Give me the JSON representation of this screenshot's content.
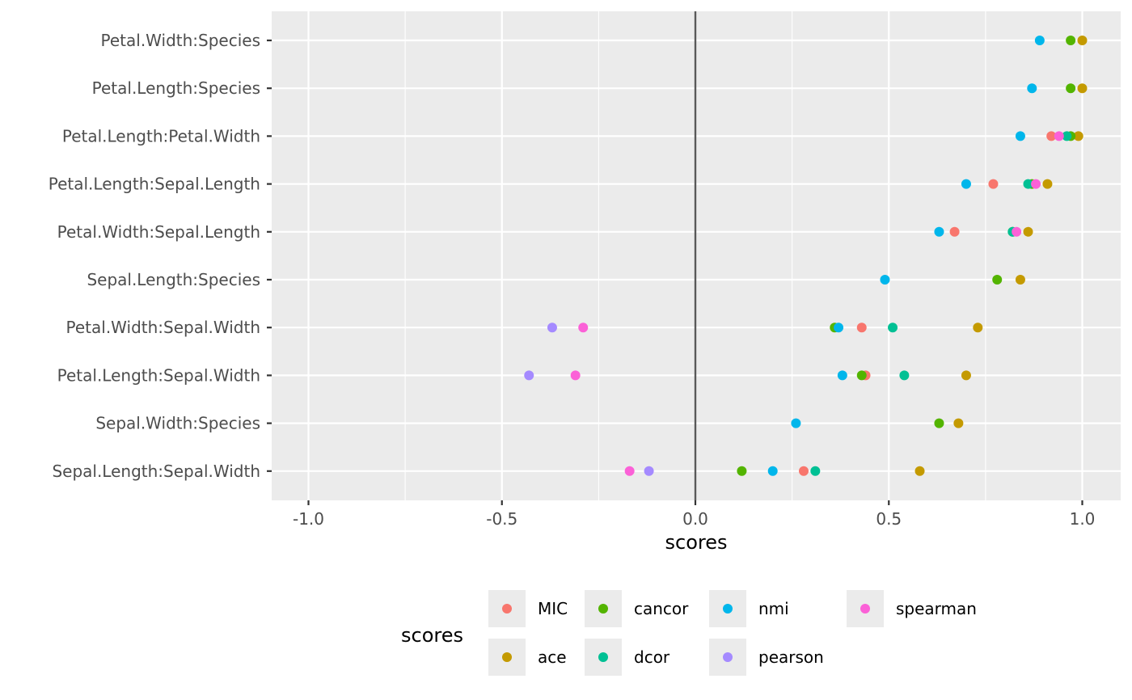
{
  "chart_data": {
    "type": "scatter",
    "xlabel": "scores",
    "xlim": [
      -1.1,
      1.1
    ],
    "x_ticks": [
      -1.0,
      -0.5,
      0.0,
      0.5,
      1.0
    ],
    "x_tick_labels": [
      "-1.0",
      "-0.5",
      "0.0",
      "0.5",
      "1.0"
    ],
    "reference_line_x": 0,
    "grid": true,
    "legend_position": "bottom",
    "legend_title": "scores",
    "categories": [
      "Petal.Width:Species",
      "Petal.Length:Species",
      "Petal.Length:Petal.Width",
      "Petal.Length:Sepal.Length",
      "Petal.Width:Sepal.Length",
      "Sepal.Length:Species",
      "Petal.Width:Sepal.Width",
      "Petal.Length:Sepal.Width",
      "Sepal.Width:Species",
      "Sepal.Length:Sepal.Width"
    ],
    "series": [
      {
        "name": "MIC",
        "color": "#F8766D",
        "values": [
          null,
          null,
          0.92,
          0.77,
          0.67,
          null,
          0.43,
          0.44,
          null,
          0.28
        ]
      },
      {
        "name": "ace",
        "color": "#C49A00",
        "values": [
          1.0,
          1.0,
          0.99,
          0.91,
          0.86,
          0.84,
          0.73,
          0.7,
          0.68,
          0.58
        ]
      },
      {
        "name": "cancor",
        "color": "#53B400",
        "values": [
          0.97,
          0.97,
          0.97,
          0.87,
          0.82,
          0.78,
          0.36,
          0.43,
          0.63,
          0.12
        ]
      },
      {
        "name": "dcor",
        "color": "#00C094",
        "values": [
          null,
          null,
          0.96,
          0.86,
          0.82,
          null,
          0.51,
          0.54,
          null,
          0.31
        ]
      },
      {
        "name": "nmi",
        "color": "#00B6EB",
        "values": [
          0.89,
          0.87,
          0.84,
          0.7,
          0.63,
          0.49,
          0.37,
          0.38,
          0.26,
          0.2
        ]
      },
      {
        "name": "pearson",
        "color": "#A58AFF",
        "values": [
          null,
          null,
          null,
          null,
          null,
          null,
          -0.37,
          -0.43,
          null,
          -0.12
        ]
      },
      {
        "name": "spearman",
        "color": "#FB61D7",
        "values": [
          null,
          null,
          0.94,
          0.88,
          0.83,
          null,
          -0.29,
          -0.31,
          null,
          -0.17
        ]
      }
    ],
    "legend_order": [
      "MIC",
      "cancor",
      "nmi",
      "spearman",
      "ace",
      "dcor",
      "pearson"
    ]
  }
}
